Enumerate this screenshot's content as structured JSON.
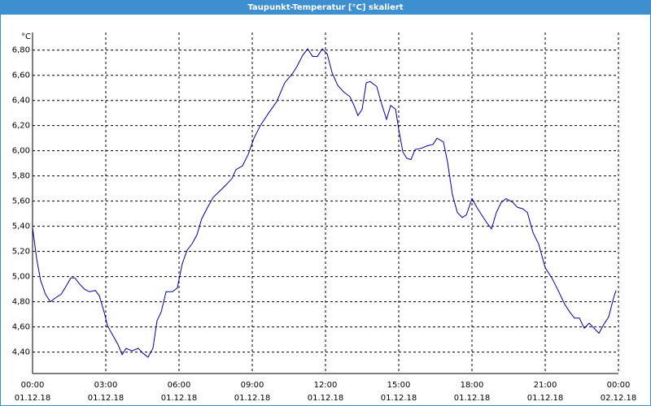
{
  "chart_data": {
    "type": "line",
    "title": "Taupunkt-Temperatur [°C] skaliert",
    "y_label": "°C",
    "xlim": [
      0,
      24
    ],
    "ylim": [
      4.23,
      6.94
    ],
    "grid": true,
    "xticks": [
      {
        "value": 0,
        "label": "00:00"
      },
      {
        "value": 3,
        "label": "03:00"
      },
      {
        "value": 6,
        "label": "06:00"
      },
      {
        "value": 9,
        "label": "09:00"
      },
      {
        "value": 12,
        "label": "12:00"
      },
      {
        "value": 15,
        "label": "15:00"
      },
      {
        "value": 18,
        "label": "18:00"
      },
      {
        "value": 21,
        "label": "21:00"
      },
      {
        "value": 24,
        "label": "00:00"
      }
    ],
    "xtick_dates": [
      "01.12.18",
      "01.12.18",
      "01.12.18",
      "01.12.18",
      "01.12.18",
      "01.12.18",
      "01.12.18",
      "01.12.18",
      "02.12.18"
    ],
    "yticks": [
      {
        "value": 4.4,
        "label": "4,40"
      },
      {
        "value": 4.6,
        "label": "4,60"
      },
      {
        "value": 4.8,
        "label": "4,80"
      },
      {
        "value": 5.0,
        "label": "5,00"
      },
      {
        "value": 5.2,
        "label": "5,20"
      },
      {
        "value": 5.4,
        "label": "5,40"
      },
      {
        "value": 5.6,
        "label": "5,60"
      },
      {
        "value": 5.8,
        "label": "5,80"
      },
      {
        "value": 6.0,
        "label": "6,00"
      },
      {
        "value": 6.2,
        "label": "6,20"
      },
      {
        "value": 6.4,
        "label": "6,40"
      },
      {
        "value": 6.6,
        "label": "6,60"
      },
      {
        "value": 6.8,
        "label": "6,80"
      }
    ],
    "series": [
      {
        "color": "#0000a0",
        "x": [
          0,
          0.17,
          0.33,
          0.53,
          0.73,
          0.93,
          1.17,
          1.33,
          1.57,
          1.73,
          1.93,
          2.13,
          2.33,
          2.57,
          2.73,
          2.93,
          3.07,
          3.27,
          3.5,
          3.67,
          3.83,
          4.07,
          4.33,
          4.53,
          4.73,
          4.93,
          5.1,
          5.27,
          5.47,
          5.73,
          5.93,
          6.13,
          6.33,
          6.53,
          6.73,
          6.93,
          7.17,
          7.4,
          7.67,
          7.93,
          8.17,
          8.33,
          8.6,
          8.83,
          9.07,
          9.33,
          9.67,
          10,
          10.33,
          10.67,
          10.83,
          11.07,
          11.27,
          11.47,
          11.67,
          11.87,
          12.07,
          12.27,
          12.5,
          12.73,
          13,
          13.17,
          13.33,
          13.5,
          13.67,
          13.83,
          14.1,
          14.27,
          14.5,
          14.67,
          14.87,
          15,
          15.17,
          15.33,
          15.5,
          15.67,
          15.93,
          16.17,
          16.4,
          16.57,
          16.83,
          17,
          17.2,
          17.4,
          17.6,
          17.77,
          18,
          18.2,
          18.4,
          18.6,
          18.8,
          19,
          19.2,
          19.4,
          19.67,
          19.87,
          20.07,
          20.27,
          20.5,
          20.73,
          21,
          21.27,
          21.53,
          21.8,
          22,
          22.2,
          22.4,
          22.6,
          22.8,
          23,
          23.2,
          23.4,
          23.6,
          23.8,
          23.9
        ],
        "values": [
          5.39,
          5.14,
          4.97,
          4.86,
          4.8,
          4.83,
          4.86,
          4.91,
          4.99,
          4.99,
          4.94,
          4.9,
          4.88,
          4.89,
          4.85,
          4.72,
          4.61,
          4.54,
          4.46,
          4.38,
          4.43,
          4.41,
          4.43,
          4.39,
          4.36,
          4.43,
          4.65,
          4.72,
          4.88,
          4.88,
          4.91,
          5.1,
          5.21,
          5.26,
          5.33,
          5.46,
          5.55,
          5.63,
          5.68,
          5.73,
          5.78,
          5.85,
          5.88,
          5.97,
          6.1,
          6.2,
          6.3,
          6.39,
          6.54,
          6.62,
          6.67,
          6.76,
          6.81,
          6.75,
          6.75,
          6.81,
          6.77,
          6.62,
          6.52,
          6.47,
          6.43,
          6.36,
          6.28,
          6.33,
          6.54,
          6.55,
          6.51,
          6.39,
          6.25,
          6.36,
          6.33,
          6.17,
          5.99,
          5.94,
          5.93,
          6.01,
          6.02,
          6.04,
          6.05,
          6.1,
          6.07,
          5.91,
          5.65,
          5.51,
          5.47,
          5.49,
          5.62,
          5.55,
          5.49,
          5.43,
          5.38,
          5.51,
          5.59,
          5.62,
          5.59,
          5.55,
          5.54,
          5.51,
          5.35,
          5.26,
          5.07,
          4.99,
          4.89,
          4.78,
          4.72,
          4.67,
          4.67,
          4.59,
          4.63,
          4.59,
          4.55,
          4.62,
          4.68,
          4.83,
          4.89
        ]
      }
    ]
  }
}
